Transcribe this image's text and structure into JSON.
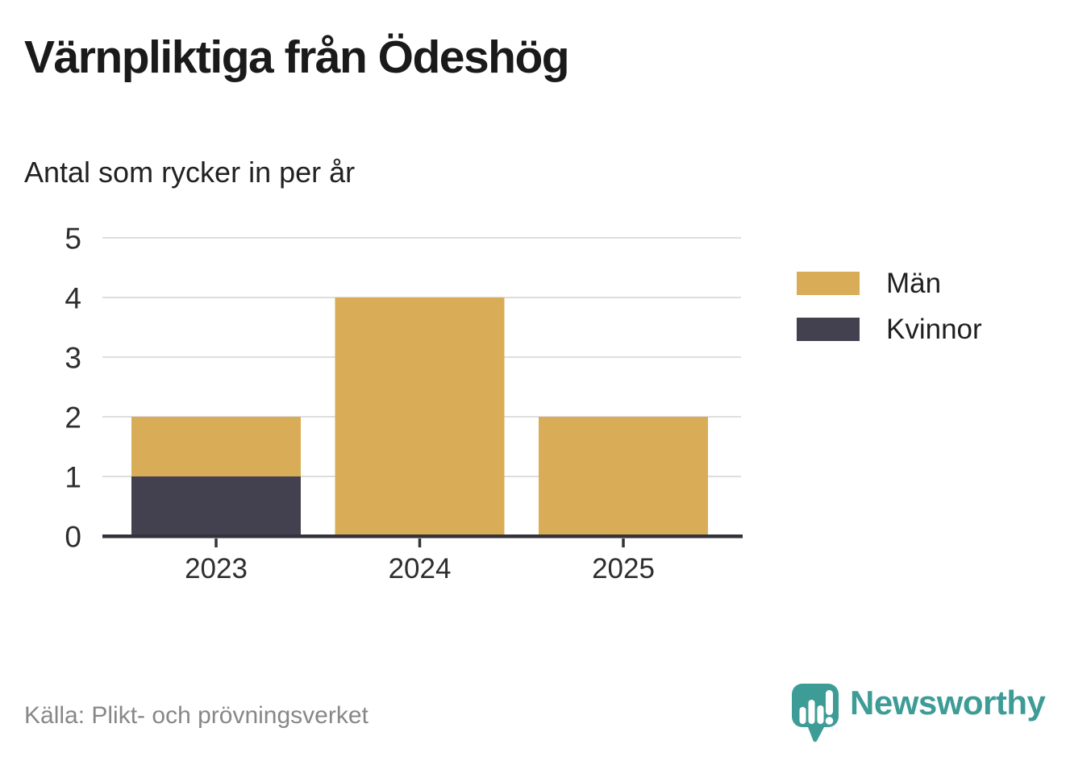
{
  "header": {
    "title": "Värnpliktiga från Ödeshög",
    "subtitle": "Antal som rycker in per år"
  },
  "legend": {
    "items": [
      {
        "label": "Män",
        "color": "#D9AC58"
      },
      {
        "label": "Kvinnor",
        "color": "#434050"
      }
    ]
  },
  "footer": {
    "source": "Källa: Plikt- och prövningsverket",
    "brand": "Newsworthy"
  },
  "colors": {
    "men": "#D9AC58",
    "women": "#434050",
    "grid": "#DEDEDE",
    "axis": "#33333B",
    "axis_text": "#2E2E2E",
    "title_text": "#1A1A1A",
    "muted_text": "#878787",
    "brand_teal": "#3E9C96"
  },
  "chart_data": {
    "type": "bar",
    "stacked": true,
    "title": "Värnpliktiga från Ödeshög",
    "subtitle": "Antal som rycker in per år",
    "categories": [
      "2023",
      "2024",
      "2025"
    ],
    "series": [
      {
        "name": "Män",
        "values": [
          1,
          4,
          2
        ],
        "color": "#D9AC58"
      },
      {
        "name": "Kvinnor",
        "values": [
          1,
          0,
          0
        ],
        "color": "#434050"
      }
    ],
    "stack_order_bottom_to_top": [
      "Kvinnor",
      "Män"
    ],
    "xlabel": "",
    "ylabel": "",
    "ylim": [
      0,
      5
    ],
    "yticks": [
      0,
      1,
      2,
      3,
      4,
      5
    ],
    "grid": true,
    "legend_position": "right"
  }
}
